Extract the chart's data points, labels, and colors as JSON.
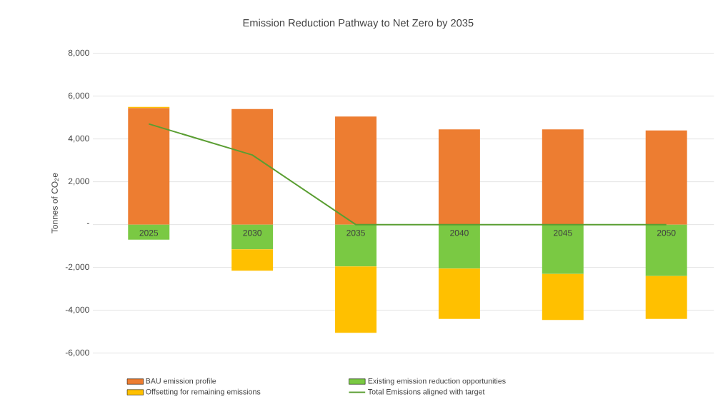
{
  "chart_data": {
    "type": "bar",
    "stacked": true,
    "title": "Emission Reduction Pathway to Net Zero by 2035",
    "ylabel": "Tonnes of CO$_{2}$e",
    "categories": [
      "2025",
      "2030",
      "2035",
      "2040",
      "2045",
      "2050"
    ],
    "series": [
      {
        "name": "BAU emission profile",
        "color": "#ed7d31",
        "values": [
          5450,
          5400,
          5050,
          4450,
          4450,
          4400
        ]
      },
      {
        "name": "Existing emission reduction opportunities",
        "color": "#7ac943",
        "values": [
          -700,
          -1150,
          -1950,
          -2050,
          -2300,
          -2400
        ]
      },
      {
        "name": "Offsetting for remaining emissions",
        "color": "#ffc000",
        "values": [
          50,
          -1000,
          -3100,
          -2350,
          -2150,
          -2000
        ]
      },
      {
        "name": "Total Emissions aligned with target",
        "type": "line",
        "color": "#5a9e32",
        "values": [
          4700,
          3250,
          0,
          0,
          0,
          0
        ]
      }
    ],
    "ylim": [
      -6000,
      8000
    ],
    "yticks": [
      {
        "value": -6000,
        "label": "-6,000"
      },
      {
        "value": -4000,
        "label": "-4,000"
      },
      {
        "value": -2000,
        "label": "-2,000"
      },
      {
        "value": 0,
        "label": "-"
      },
      {
        "value": 2000,
        "label": "2,000"
      },
      {
        "value": 4000,
        "label": "4,000"
      },
      {
        "value": 6000,
        "label": "6,000"
      },
      {
        "value": 8000,
        "label": "8,000"
      }
    ],
    "grid": "y",
    "legend": "bottom"
  }
}
